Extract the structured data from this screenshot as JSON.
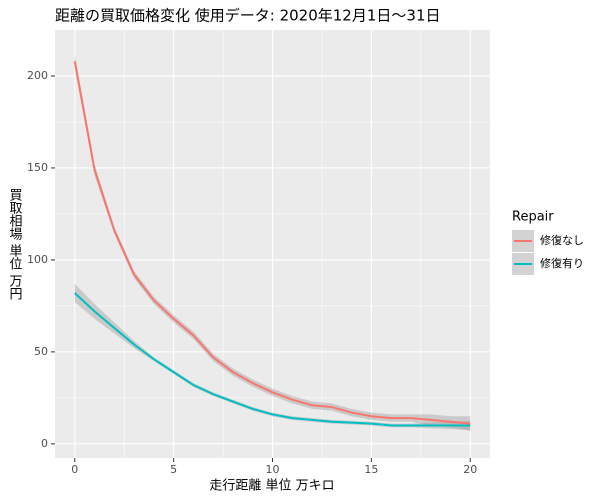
{
  "chart_data": {
    "type": "line",
    "title": "距離の買取価格変化 使用データ: 2020年12月1日～31日",
    "xlabel": "走行距離 単位 万キロ",
    "ylabel": "買取相場 単位 万円",
    "legend_title": "Repair",
    "legend": "right",
    "grid": true,
    "x": [
      0,
      1,
      2,
      3,
      4,
      5,
      6,
      7,
      8,
      9,
      10,
      11,
      12,
      13,
      14,
      15,
      16,
      17,
      18,
      19,
      20
    ],
    "series": [
      {
        "name": "修復なし",
        "color": "#f8766d",
        "values": [
          208,
          149,
          116,
          92,
          78,
          68,
          59,
          47,
          39,
          33,
          28,
          24,
          21,
          20,
          17,
          15,
          14,
          14,
          13,
          12,
          11
        ],
        "lower": [
          204,
          146,
          114,
          90,
          76,
          66,
          57,
          45,
          37,
          31,
          26,
          22,
          19,
          18,
          15,
          13,
          12,
          12,
          10,
          9,
          7
        ],
        "upper": [
          212,
          152,
          118,
          94,
          80,
          70,
          61,
          49,
          41,
          35,
          30,
          26,
          23,
          22,
          19,
          17,
          16,
          16,
          16,
          15,
          15
        ]
      },
      {
        "name": "修復有り",
        "color": "#00bfc4",
        "values": [
          82,
          72,
          63,
          54,
          46,
          39,
          32,
          27,
          23,
          19,
          16,
          14,
          13,
          12,
          11.5,
          11,
          10,
          10,
          10,
          10,
          10
        ],
        "lower": [
          77,
          68,
          60,
          52,
          45,
          38,
          31,
          26,
          22,
          18,
          15,
          13,
          12,
          11,
          10.5,
          10,
          9,
          9,
          8.5,
          8,
          7.5
        ],
        "upper": [
          87,
          76,
          66,
          56,
          47,
          40,
          33,
          28,
          24,
          20,
          17,
          15,
          14,
          13,
          12.5,
          12,
          11,
          11,
          11.5,
          12,
          12.5
        ]
      }
    ],
    "band_color": "#999999",
    "xlim": [
      -1,
      21
    ],
    "ylim": [
      -7.7,
      225
    ],
    "xticks": [
      0,
      5,
      10,
      15,
      20
    ],
    "yticks": [
      0,
      50,
      100,
      150,
      200
    ],
    "xminor": [
      2.5,
      7.5,
      12.5,
      17.5
    ],
    "yminor": [
      25,
      75,
      125,
      175
    ]
  }
}
